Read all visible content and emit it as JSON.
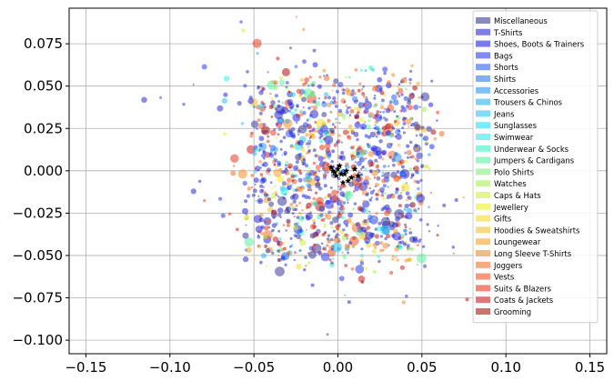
{
  "chart_data": {
    "type": "scatter",
    "title": "",
    "xlabel": "",
    "ylabel": "",
    "xlim": [
      -0.16,
      0.16
    ],
    "ylim": [
      -0.108,
      0.096
    ],
    "grid": true,
    "legend_placement": "top-right",
    "x_ticks": [
      -0.15,
      -0.1,
      -0.05,
      0.0,
      0.05,
      0.1,
      0.15
    ],
    "x_tick_labels": [
      "−0.15",
      "−0.10",
      "−0.05",
      "0.00",
      "0.05",
      "0.10",
      "0.15"
    ],
    "y_ticks": [
      0.075,
      0.05,
      0.025,
      0.0,
      -0.025,
      -0.05,
      -0.075,
      -0.1
    ],
    "y_tick_labels": [
      "0.075",
      "0.050",
      "0.025",
      "0.000",
      "−0.025",
      "−0.050",
      "−0.075",
      "−0.100"
    ],
    "categories": [
      {
        "name": "Miscellaneous",
        "color": "#3a3a9a"
      },
      {
        "name": "T-Shirts",
        "color": "#2c2cd0"
      },
      {
        "name": "Shoes, Boots & Trainers",
        "color": "#2424e8"
      },
      {
        "name": "Bags",
        "color": "#2a3cf0"
      },
      {
        "name": "Shorts",
        "color": "#2a60f0"
      },
      {
        "name": "Shirts",
        "color": "#2a7cf0"
      },
      {
        "name": "Accessories",
        "color": "#2a98f2"
      },
      {
        "name": "Trousers & Chinos",
        "color": "#2ab0f2"
      },
      {
        "name": "Jeans",
        "color": "#2ac4f0"
      },
      {
        "name": "Sunglasses",
        "color": "#2adcf0"
      },
      {
        "name": "Swimwear",
        "color": "#2af0e8"
      },
      {
        "name": "Underwear & Socks",
        "color": "#3cf0c4"
      },
      {
        "name": "Jumpers & Cardigans",
        "color": "#5cf0a0"
      },
      {
        "name": "Polo Shirts",
        "color": "#84f07c"
      },
      {
        "name": "Watches",
        "color": "#a8f058"
      },
      {
        "name": "Caps & Hats",
        "color": "#cef03c"
      },
      {
        "name": "Jewellery",
        "color": "#eef02a"
      },
      {
        "name": "Gifts",
        "color": "#f4dc2a"
      },
      {
        "name": "Hoodies & Sweatshirts",
        "color": "#f4c02a"
      },
      {
        "name": "Loungewear",
        "color": "#f4a42a"
      },
      {
        "name": "Long Sleeve T-Shirts",
        "color": "#f48c2a"
      },
      {
        "name": "Joggers",
        "color": "#f47028"
      },
      {
        "name": "Vests",
        "color": "#f05424"
      },
      {
        "name": "Suits & Blazers",
        "color": "#e83a22"
      },
      {
        "name": "Coats & Jackets",
        "color": "#c82020"
      },
      {
        "name": "Grooming",
        "color": "#b00f0f"
      }
    ],
    "stars": {
      "marker": "star",
      "color": "#000000",
      "points": [
        [
          0.0,
          0.001
        ],
        [
          -0.002,
          -0.001
        ],
        [
          0.002,
          -0.002
        ],
        [
          0.001,
          0.003
        ],
        [
          -0.003,
          0.0
        ],
        [
          0.005,
          0.0
        ],
        [
          0.01,
          0.001
        ],
        [
          0.008,
          -0.004
        ],
        [
          0.006,
          -0.006
        ],
        [
          0.003,
          -0.007
        ],
        [
          -0.001,
          -0.003
        ],
        [
          0.004,
          -0.002
        ],
        [
          0.012,
          -0.003
        ],
        [
          -0.004,
          0.002
        ]
      ]
    }
  }
}
